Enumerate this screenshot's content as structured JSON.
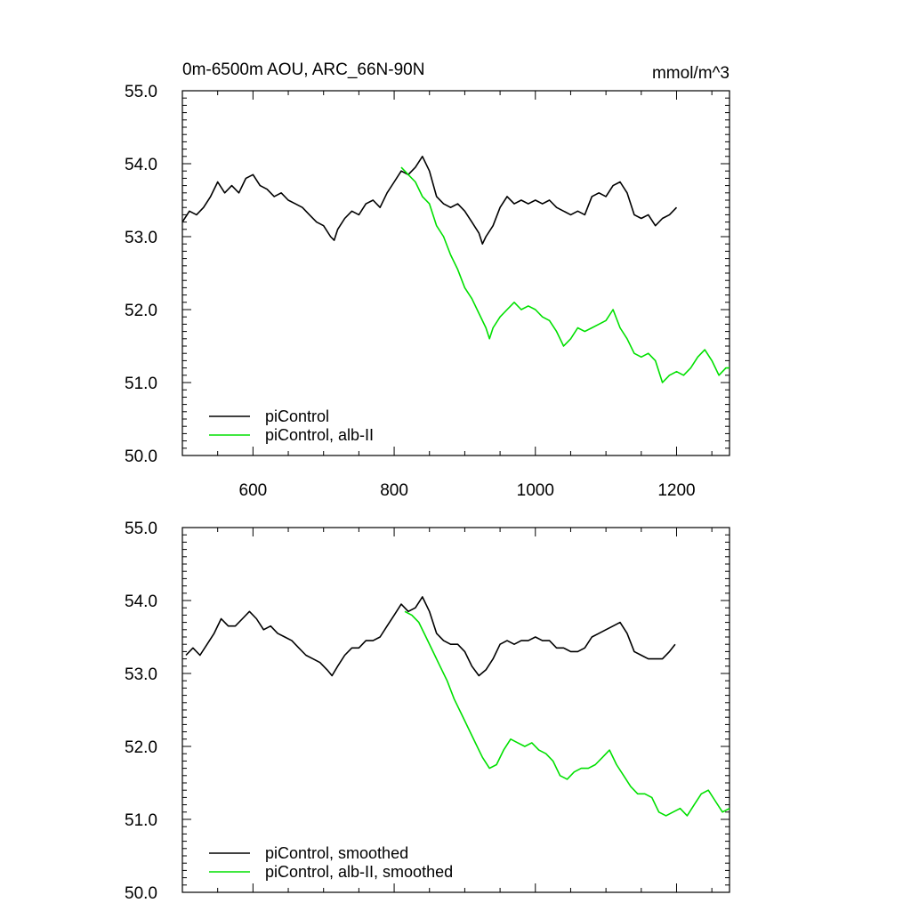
{
  "header": {
    "title_left": "0m-6500m AOU, ARC_66N-90N",
    "title_right": "mmol/m^3"
  },
  "colors": {
    "control": "#000000",
    "experiment": "#00e000",
    "axis": "#000000"
  },
  "chart_data": [
    {
      "type": "line",
      "title": "0m-6500m AOU, ARC_66N-90N",
      "units": "mmol/m^3",
      "xlim": [
        500,
        1275
      ],
      "ylim": [
        50.0,
        55.0
      ],
      "xticks": [
        600,
        800,
        1000,
        1200
      ],
      "xtick_labels": [
        "600",
        "800",
        "1000",
        "1200"
      ],
      "yticks": [
        50,
        51,
        52,
        53,
        54,
        55
      ],
      "ytick_labels": [
        "50.0",
        "51.0",
        "52.0",
        "53.0",
        "54.0",
        "55.0"
      ],
      "legend_position": "bottom-left",
      "series": [
        {
          "name": "piControl",
          "color": "#000000",
          "points": [
            [
              500,
              53.2
            ],
            [
              510,
              53.35
            ],
            [
              520,
              53.3
            ],
            [
              530,
              53.4
            ],
            [
              540,
              53.55
            ],
            [
              550,
              53.75
            ],
            [
              560,
              53.6
            ],
            [
              570,
              53.7
            ],
            [
              580,
              53.6
            ],
            [
              590,
              53.8
            ],
            [
              600,
              53.85
            ],
            [
              610,
              53.7
            ],
            [
              620,
              53.65
            ],
            [
              630,
              53.55
            ],
            [
              640,
              53.6
            ],
            [
              650,
              53.5
            ],
            [
              660,
              53.45
            ],
            [
              670,
              53.4
            ],
            [
              680,
              53.3
            ],
            [
              690,
              53.2
            ],
            [
              700,
              53.15
            ],
            [
              710,
              53.0
            ],
            [
              715,
              52.95
            ],
            [
              720,
              53.1
            ],
            [
              730,
              53.25
            ],
            [
              740,
              53.35
            ],
            [
              750,
              53.3
            ],
            [
              760,
              53.45
            ],
            [
              770,
              53.5
            ],
            [
              780,
              53.4
            ],
            [
              790,
              53.6
            ],
            [
              800,
              53.75
            ],
            [
              810,
              53.9
            ],
            [
              820,
              53.85
            ],
            [
              830,
              53.95
            ],
            [
              840,
              54.1
            ],
            [
              850,
              53.9
            ],
            [
              860,
              53.55
            ],
            [
              870,
              53.45
            ],
            [
              880,
              53.4
            ],
            [
              890,
              53.45
            ],
            [
              900,
              53.35
            ],
            [
              910,
              53.2
            ],
            [
              920,
              53.05
            ],
            [
              925,
              52.9
            ],
            [
              930,
              53.0
            ],
            [
              940,
              53.15
            ],
            [
              950,
              53.4
            ],
            [
              960,
              53.55
            ],
            [
              970,
              53.45
            ],
            [
              980,
              53.5
            ],
            [
              990,
              53.45
            ],
            [
              1000,
              53.5
            ],
            [
              1010,
              53.45
            ],
            [
              1020,
              53.5
            ],
            [
              1030,
              53.4
            ],
            [
              1040,
              53.35
            ],
            [
              1050,
              53.3
            ],
            [
              1060,
              53.35
            ],
            [
              1070,
              53.3
            ],
            [
              1080,
              53.55
            ],
            [
              1090,
              53.6
            ],
            [
              1100,
              53.55
            ],
            [
              1110,
              53.7
            ],
            [
              1120,
              53.75
            ],
            [
              1130,
              53.6
            ],
            [
              1140,
              53.3
            ],
            [
              1150,
              53.25
            ],
            [
              1160,
              53.3
            ],
            [
              1170,
              53.15
            ],
            [
              1180,
              53.25
            ],
            [
              1190,
              53.3
            ],
            [
              1200,
              53.4
            ]
          ]
        },
        {
          "name": "piControl, alb-II",
          "color": "#00e000",
          "points": [
            [
              810,
              53.95
            ],
            [
              820,
              53.85
            ],
            [
              830,
              53.75
            ],
            [
              840,
              53.55
            ],
            [
              850,
              53.45
            ],
            [
              860,
              53.15
            ],
            [
              870,
              53.0
            ],
            [
              880,
              52.75
            ],
            [
              890,
              52.55
            ],
            [
              900,
              52.3
            ],
            [
              910,
              52.15
            ],
            [
              920,
              51.95
            ],
            [
              930,
              51.75
            ],
            [
              935,
              51.6
            ],
            [
              940,
              51.75
            ],
            [
              950,
              51.9
            ],
            [
              960,
              52.0
            ],
            [
              970,
              52.1
            ],
            [
              980,
              52.0
            ],
            [
              990,
              52.05
            ],
            [
              1000,
              52.0
            ],
            [
              1010,
              51.9
            ],
            [
              1020,
              51.85
            ],
            [
              1030,
              51.7
            ],
            [
              1040,
              51.5
            ],
            [
              1050,
              51.6
            ],
            [
              1060,
              51.75
            ],
            [
              1070,
              51.7
            ],
            [
              1080,
              51.75
            ],
            [
              1090,
              51.8
            ],
            [
              1100,
              51.85
            ],
            [
              1110,
              52.0
            ],
            [
              1120,
              51.75
            ],
            [
              1130,
              51.6
            ],
            [
              1140,
              51.4
            ],
            [
              1150,
              51.35
            ],
            [
              1160,
              51.4
            ],
            [
              1170,
              51.3
            ],
            [
              1180,
              51.0
            ],
            [
              1190,
              51.1
            ],
            [
              1200,
              51.15
            ],
            [
              1210,
              51.1
            ],
            [
              1220,
              51.2
            ],
            [
              1230,
              51.35
            ],
            [
              1240,
              51.45
            ],
            [
              1250,
              51.3
            ],
            [
              1260,
              51.1
            ],
            [
              1270,
              51.2
            ],
            [
              1275,
              51.2
            ]
          ]
        }
      ]
    },
    {
      "type": "line",
      "xlim": [
        500,
        1275
      ],
      "ylim": [
        50.0,
        55.0
      ],
      "xticks": [
        600,
        800,
        1000,
        1200
      ],
      "yticks": [
        50,
        51,
        52,
        53,
        54,
        55
      ],
      "ytick_labels": [
        "50.0",
        "51.0",
        "52.0",
        "53.0",
        "54.0",
        "55.0"
      ],
      "legend_position": "bottom-left",
      "series": [
        {
          "name": "piControl, smoothed",
          "color": "#000000",
          "points": [
            [
              505,
              53.25
            ],
            [
              515,
              53.35
            ],
            [
              525,
              53.25
            ],
            [
              535,
              53.4
            ],
            [
              545,
              53.55
            ],
            [
              555,
              53.75
            ],
            [
              565,
              53.65
            ],
            [
              575,
              53.65
            ],
            [
              585,
              53.75
            ],
            [
              595,
              53.85
            ],
            [
              605,
              53.75
            ],
            [
              615,
              53.6
            ],
            [
              625,
              53.65
            ],
            [
              635,
              53.55
            ],
            [
              645,
              53.5
            ],
            [
              655,
              53.45
            ],
            [
              665,
              53.35
            ],
            [
              675,
              53.25
            ],
            [
              685,
              53.2
            ],
            [
              695,
              53.15
            ],
            [
              705,
              53.05
            ],
            [
              712,
              52.97
            ],
            [
              720,
              53.1
            ],
            [
              730,
              53.25
            ],
            [
              740,
              53.35
            ],
            [
              750,
              53.35
            ],
            [
              760,
              53.45
            ],
            [
              770,
              53.45
            ],
            [
              780,
              53.5
            ],
            [
              790,
              53.65
            ],
            [
              800,
              53.8
            ],
            [
              810,
              53.95
            ],
            [
              820,
              53.85
            ],
            [
              830,
              53.9
            ],
            [
              840,
              54.05
            ],
            [
              850,
              53.85
            ],
            [
              860,
              53.55
            ],
            [
              870,
              53.45
            ],
            [
              880,
              53.4
            ],
            [
              890,
              53.4
            ],
            [
              900,
              53.3
            ],
            [
              910,
              53.1
            ],
            [
              920,
              52.97
            ],
            [
              930,
              53.05
            ],
            [
              940,
              53.2
            ],
            [
              950,
              53.4
            ],
            [
              960,
              53.45
            ],
            [
              970,
              53.4
            ],
            [
              980,
              53.45
            ],
            [
              990,
              53.45
            ],
            [
              1000,
              53.5
            ],
            [
              1010,
              53.45
            ],
            [
              1020,
              53.45
            ],
            [
              1030,
              53.35
            ],
            [
              1040,
              53.35
            ],
            [
              1050,
              53.3
            ],
            [
              1060,
              53.3
            ],
            [
              1070,
              53.35
            ],
            [
              1080,
              53.5
            ],
            [
              1090,
              53.55
            ],
            [
              1100,
              53.6
            ],
            [
              1110,
              53.65
            ],
            [
              1120,
              53.7
            ],
            [
              1130,
              53.55
            ],
            [
              1140,
              53.3
            ],
            [
              1150,
              53.25
            ],
            [
              1160,
              53.2
            ],
            [
              1170,
              53.2
            ],
            [
              1180,
              53.2
            ],
            [
              1190,
              53.3
            ],
            [
              1198,
              53.4
            ]
          ]
        },
        {
          "name": "piControl, alb-II, smoothed",
          "color": "#00e000",
          "points": [
            [
              815,
              53.85
            ],
            [
              825,
              53.8
            ],
            [
              835,
              53.7
            ],
            [
              845,
              53.5
            ],
            [
              855,
              53.3
            ],
            [
              865,
              53.1
            ],
            [
              875,
              52.9
            ],
            [
              885,
              52.65
            ],
            [
              895,
              52.45
            ],
            [
              905,
              52.25
            ],
            [
              915,
              52.05
            ],
            [
              925,
              51.85
            ],
            [
              935,
              51.7
            ],
            [
              945,
              51.75
            ],
            [
              955,
              51.95
            ],
            [
              965,
              52.1
            ],
            [
              975,
              52.05
            ],
            [
              985,
              52.0
            ],
            [
              995,
              52.05
            ],
            [
              1005,
              51.95
            ],
            [
              1015,
              51.9
            ],
            [
              1025,
              51.8
            ],
            [
              1035,
              51.6
            ],
            [
              1045,
              51.55
            ],
            [
              1055,
              51.65
            ],
            [
              1065,
              51.7
            ],
            [
              1075,
              51.7
            ],
            [
              1085,
              51.75
            ],
            [
              1095,
              51.85
            ],
            [
              1105,
              51.95
            ],
            [
              1115,
              51.75
            ],
            [
              1125,
              51.6
            ],
            [
              1135,
              51.45
            ],
            [
              1145,
              51.35
            ],
            [
              1155,
              51.35
            ],
            [
              1165,
              51.3
            ],
            [
              1175,
              51.1
            ],
            [
              1185,
              51.05
            ],
            [
              1195,
              51.1
            ],
            [
              1205,
              51.15
            ],
            [
              1215,
              51.05
            ],
            [
              1225,
              51.2
            ],
            [
              1235,
              51.35
            ],
            [
              1245,
              51.4
            ],
            [
              1255,
              51.25
            ],
            [
              1265,
              51.1
            ],
            [
              1275,
              51.15
            ]
          ]
        }
      ]
    }
  ]
}
